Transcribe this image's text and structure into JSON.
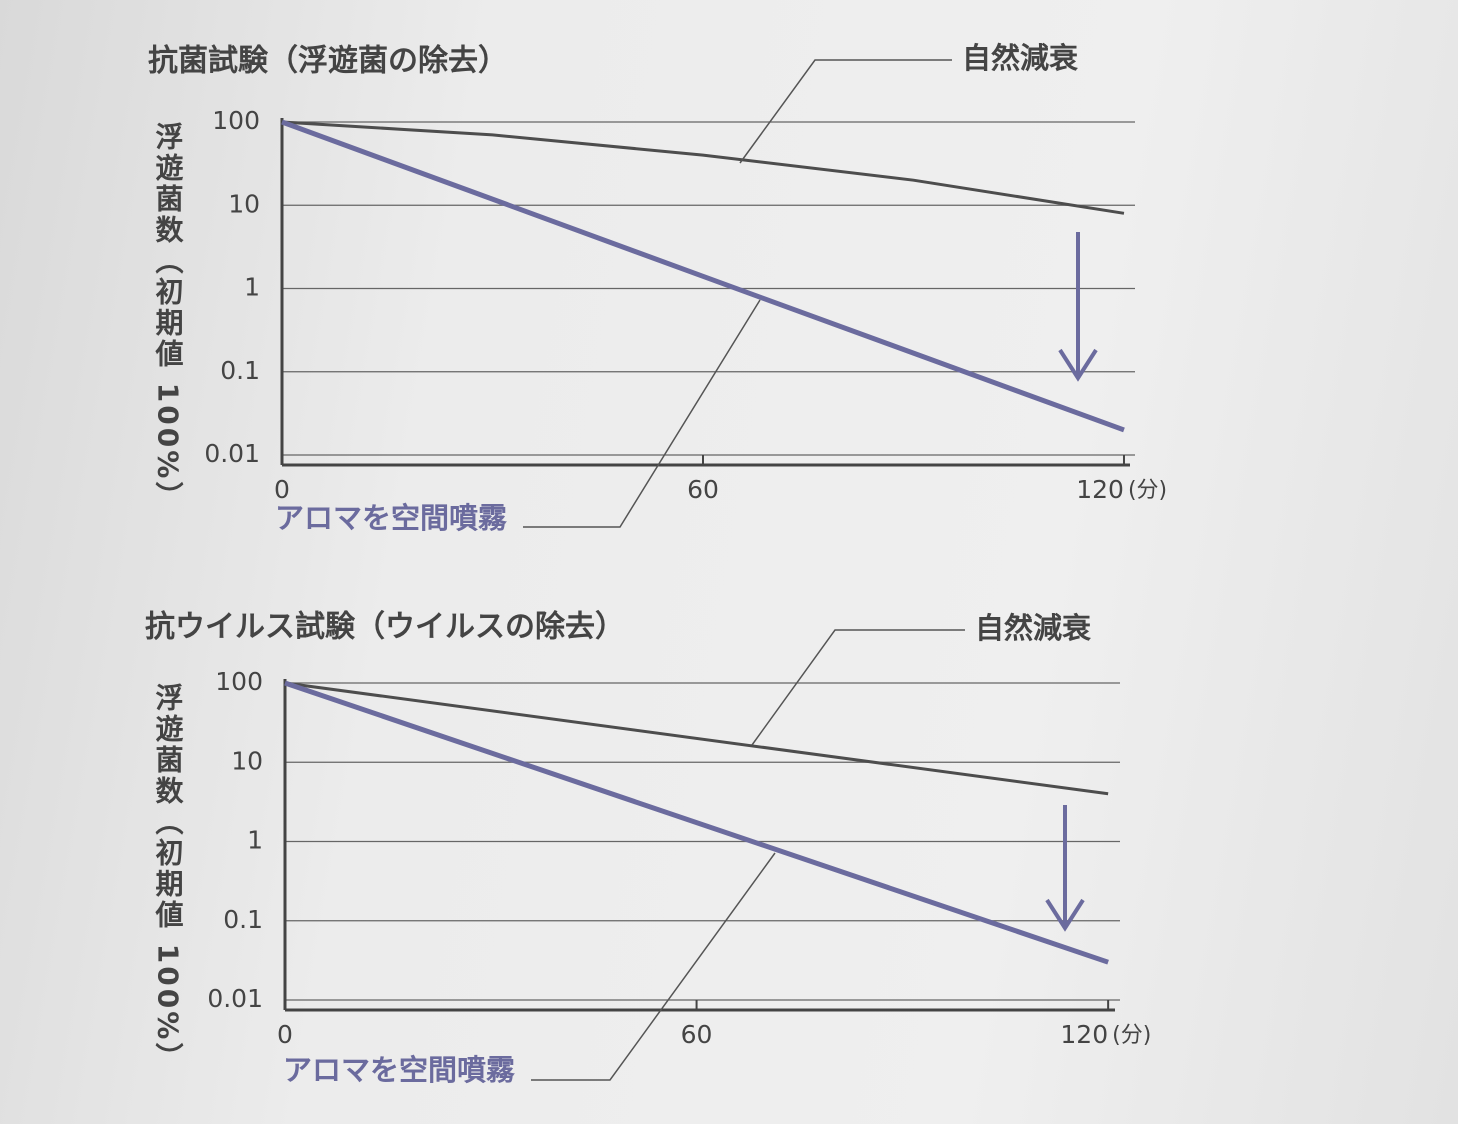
{
  "chart_data": [
    {
      "type": "line",
      "title": "抗菌試験（浮遊菌の除去）",
      "y_label": "浮遊菌数（初期値 100%）",
      "x_unit": "(分)",
      "log_scale": true,
      "grid": true,
      "xlim": [
        0,
        121
      ],
      "xticks": [
        0,
        60,
        120
      ],
      "ylim": [
        0.01,
        100
      ],
      "yticks": [
        100,
        10,
        1,
        0.1,
        0.01
      ],
      "series": [
        {
          "name": "自然減衰",
          "color": "#4d4d4d",
          "x": [
            0,
            30,
            60,
            90,
            120
          ],
          "values": [
            100,
            70,
            40,
            20,
            8
          ]
        },
        {
          "name": "アロマを空間噴霧",
          "color": "#6b6b9e",
          "x": [
            0,
            60,
            120
          ],
          "values": [
            100,
            1.4,
            0.02
          ]
        }
      ]
    },
    {
      "type": "line",
      "title": "抗ウイルス試験（ウイルスの除去）",
      "y_label": "浮遊菌数（初期値 100%）",
      "x_unit": "(分)",
      "log_scale": true,
      "grid": true,
      "xlim": [
        0,
        121
      ],
      "xticks": [
        0,
        60,
        120
      ],
      "ylim": [
        0.01,
        100
      ],
      "yticks": [
        100,
        10,
        1,
        0.1,
        0.01
      ],
      "series": [
        {
          "name": "自然減衰",
          "color": "#4d4d4d",
          "x": [
            0,
            120
          ],
          "values": [
            100,
            4
          ]
        },
        {
          "name": "アロマを空間噴霧",
          "color": "#6b6b9e",
          "x": [
            0,
            120
          ],
          "values": [
            100,
            0.03
          ]
        }
      ]
    }
  ]
}
